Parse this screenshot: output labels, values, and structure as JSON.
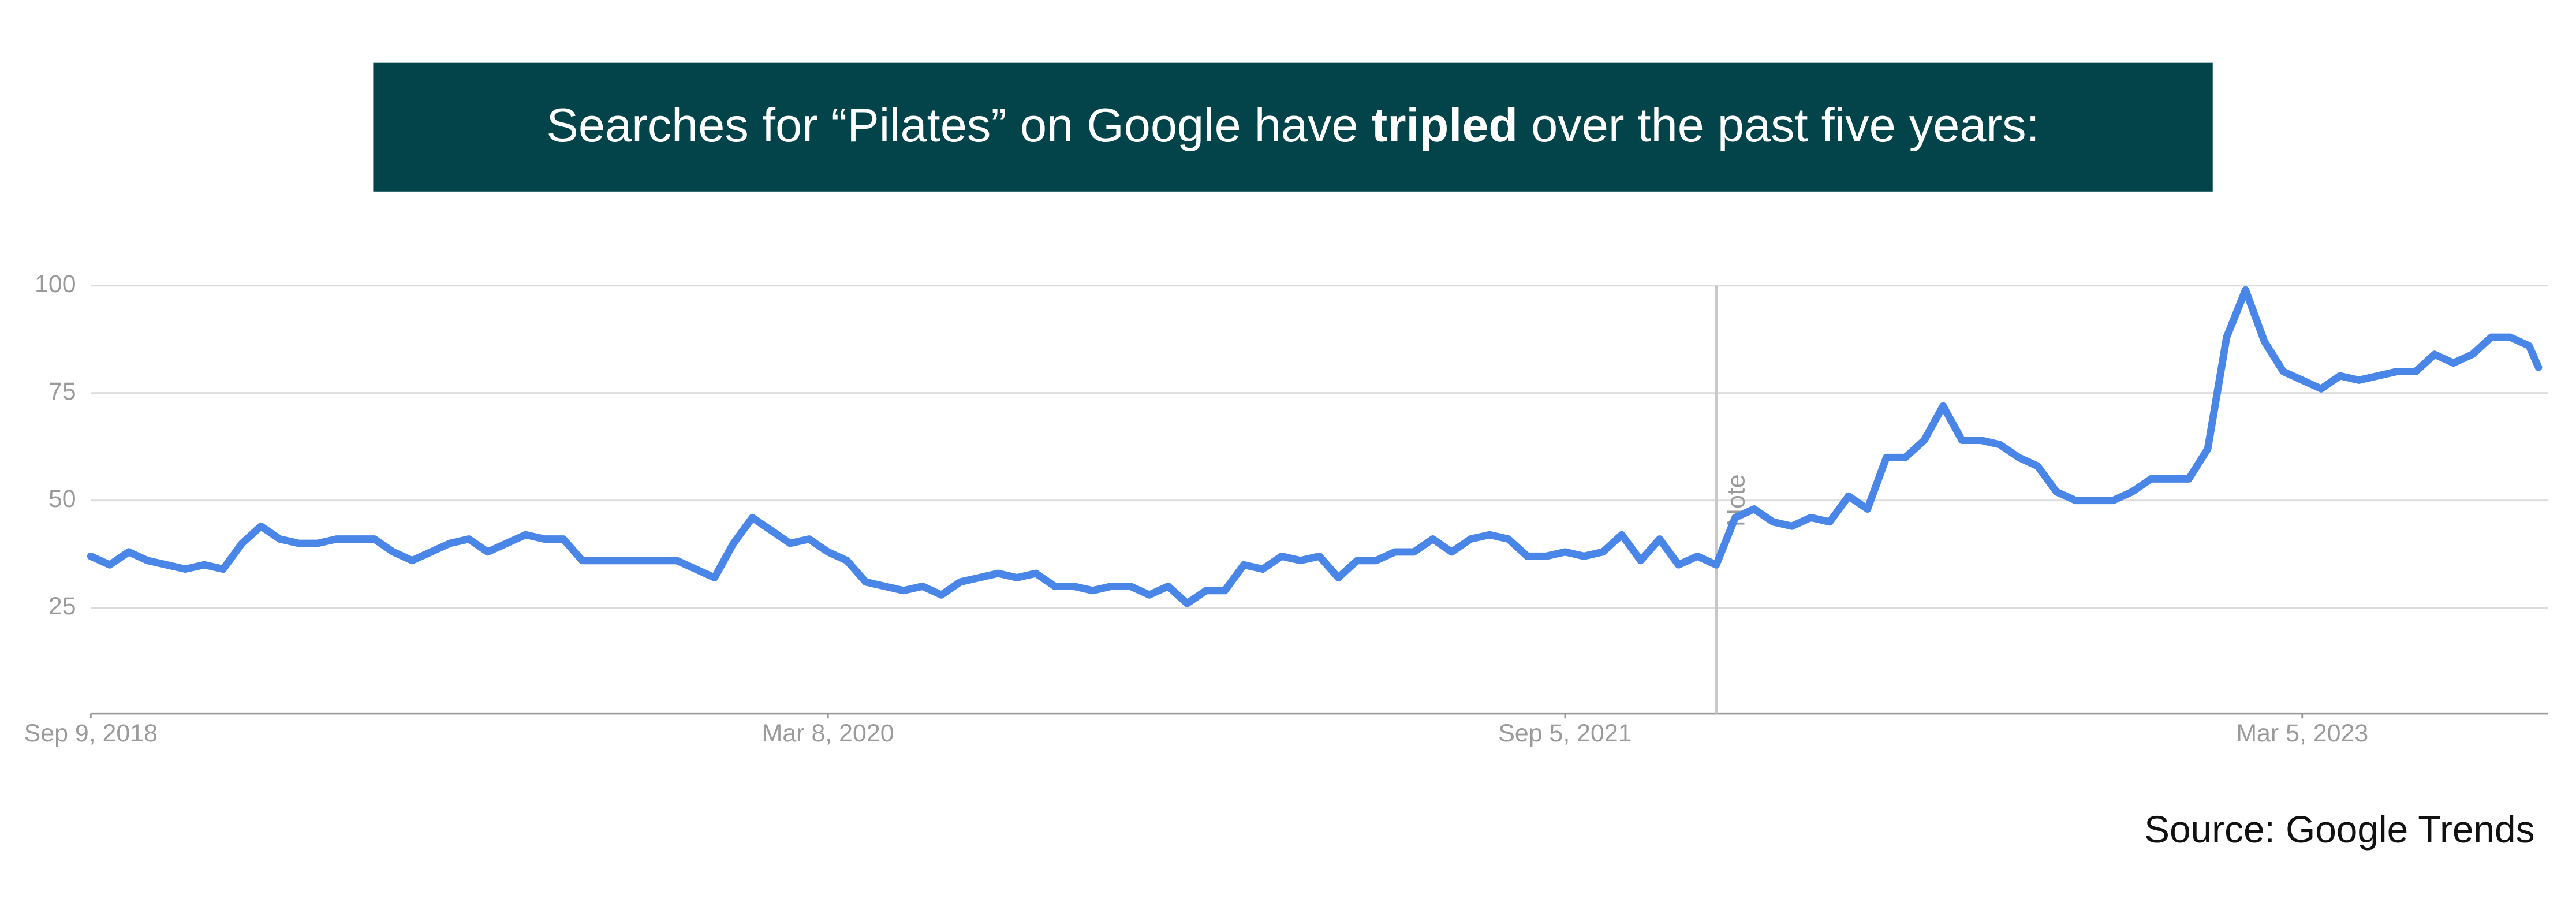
{
  "chart_data": {
    "type": "line",
    "title": "Searches for “Pilates” on Google have tripled over the past five years:",
    "title_emphasis": "tripled",
    "source": "Source: Google Trends",
    "annotation": {
      "x": 172,
      "label": "Note"
    },
    "x": [
      0,
      2,
      4,
      6,
      8,
      10,
      12,
      14,
      16,
      18,
      20,
      22,
      24,
      26,
      28,
      30,
      32,
      34,
      36,
      38,
      40,
      42,
      44,
      46,
      48,
      50,
      52,
      54,
      56,
      58,
      60,
      62,
      64,
      66,
      68,
      70,
      72,
      74,
      76,
      78,
      80,
      82,
      84,
      86,
      88,
      90,
      92,
      94,
      96,
      98,
      100,
      102,
      104,
      106,
      108,
      110,
      112,
      114,
      116,
      118,
      120,
      122,
      124,
      126,
      128,
      130,
      132,
      134,
      136,
      138,
      140,
      142,
      144,
      146,
      148,
      150,
      152,
      154,
      156,
      158,
      160,
      162,
      164,
      166,
      168,
      170,
      172,
      174,
      176,
      178,
      180,
      182,
      184,
      186,
      188,
      190,
      192,
      194,
      196,
      198,
      200,
      202,
      204,
      206,
      208,
      210,
      212,
      214,
      216,
      218,
      220,
      222,
      224,
      226,
      228,
      230,
      232,
      234,
      236,
      238,
      240,
      242,
      244,
      246,
      248,
      250,
      252,
      254,
      256,
      258,
      259
    ],
    "series": [
      {
        "name": "Pilates",
        "color": "#4a86e8",
        "values": [
          37,
          35,
          38,
          36,
          35,
          34,
          35,
          34,
          40,
          44,
          41,
          40,
          40,
          41,
          41,
          41,
          38,
          36,
          38,
          40,
          41,
          38,
          40,
          42,
          41,
          41,
          36,
          36,
          36,
          36,
          36,
          36,
          34,
          32,
          40,
          46,
          43,
          40,
          41,
          38,
          36,
          31,
          30,
          29,
          30,
          28,
          31,
          32,
          33,
          32,
          33,
          30,
          30,
          29,
          30,
          30,
          28,
          30,
          26,
          29,
          29,
          35,
          34,
          37,
          36,
          37,
          32,
          36,
          36,
          38,
          38,
          41,
          38,
          41,
          42,
          41,
          37,
          37,
          38,
          37,
          38,
          42,
          36,
          41,
          35,
          37,
          35,
          46,
          48,
          45,
          44,
          46,
          45,
          51,
          48,
          60,
          60,
          64,
          72,
          64,
          64,
          63,
          60,
          58,
          52,
          50,
          50,
          50,
          52,
          55,
          55,
          55,
          62,
          88,
          99,
          87,
          80,
          78,
          76,
          79,
          78,
          79,
          80,
          80,
          84,
          82,
          84,
          88,
          88,
          86,
          81
        ]
      }
    ],
    "xlim": [
      0,
      260
    ],
    "xticks": [
      {
        "value": 0,
        "label": "Sep 9, 2018"
      },
      {
        "value": 78,
        "label": "Mar 8, 2020"
      },
      {
        "value": 156,
        "label": "Sep 5, 2021"
      },
      {
        "value": 234,
        "label": "Mar 5, 2023"
      }
    ],
    "ylim": [
      0,
      100
    ],
    "yticks": [
      25,
      50,
      75,
      100
    ],
    "grid": true
  }
}
